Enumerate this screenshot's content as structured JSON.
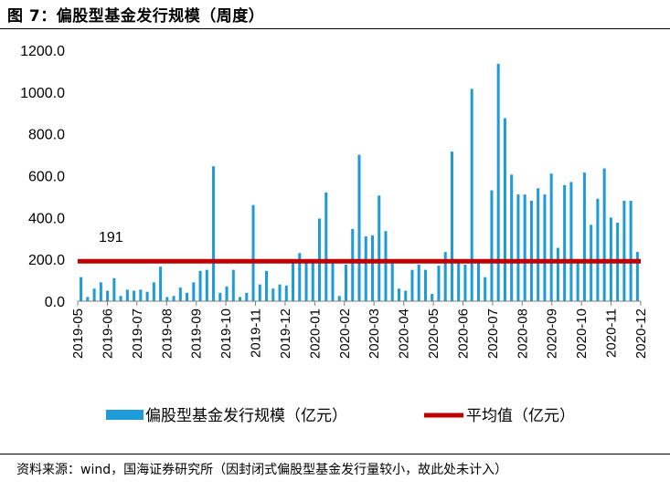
{
  "figure": {
    "title": "图 7：偏股型基金发行规模（周度）",
    "source": "资料来源：wind，国海证券研究所（因封闭式偏股型基金发行量较小，故此处未计入）"
  },
  "colors": {
    "bar": "#1f9bd8",
    "avg_line": "#c00000",
    "axis": "#7f7f7f"
  },
  "chart_data": {
    "type": "bar",
    "title": "偏股型基金发行规模（周度）",
    "xlabel": "",
    "ylabel": "",
    "ylim": [
      0,
      1200
    ],
    "yticks": [
      "0.0",
      "200.0",
      "400.0",
      "600.0",
      "800.0",
      "1000.0",
      "1200.0"
    ],
    "ytick_values": [
      0,
      200,
      400,
      600,
      800,
      1000,
      1200
    ],
    "months": [
      "2019-05",
      "2019-06",
      "2019-07",
      "2019-08",
      "2019-09",
      "2019-10",
      "2019-11",
      "2019-12",
      "2020-01",
      "2020-02",
      "2020-03",
      "2020-04",
      "2020-05",
      "2020-06",
      "2020-07",
      "2020-08",
      "2020-09",
      "2020-10",
      "2020-11",
      "2020-12"
    ],
    "series": [
      {
        "name": "偏股型基金发行规模（亿元）",
        "kind": "bar",
        "values": [
          115,
          20,
          60,
          90,
          50,
          110,
          25,
          55,
          50,
          55,
          45,
          90,
          165,
          20,
          25,
          65,
          40,
          90,
          145,
          150,
          645,
          40,
          70,
          150,
          20,
          40,
          460,
          80,
          145,
          60,
          80,
          75,
          190,
          230,
          190,
          190,
          395,
          520,
          190,
          25,
          175,
          345,
          700,
          310,
          315,
          505,
          335,
          185,
          60,
          50,
          150,
          175,
          150,
          35,
          170,
          235,
          715,
          190,
          175,
          1015,
          190,
          115,
          530,
          1135,
          875,
          605,
          510,
          510,
          480,
          540,
          510,
          610,
          255,
          555,
          570,
          190,
          615,
          365,
          490,
          635,
          400,
          375,
          480,
          480,
          235
        ]
      },
      {
        "name": "平均值（亿元）",
        "kind": "line",
        "value": 191
      }
    ],
    "annotations": [
      {
        "text": "191"
      }
    ],
    "legend": {
      "position": "bottom",
      "items": [
        "偏股型基金发行规模（亿元）",
        "平均值（亿元）"
      ]
    }
  }
}
